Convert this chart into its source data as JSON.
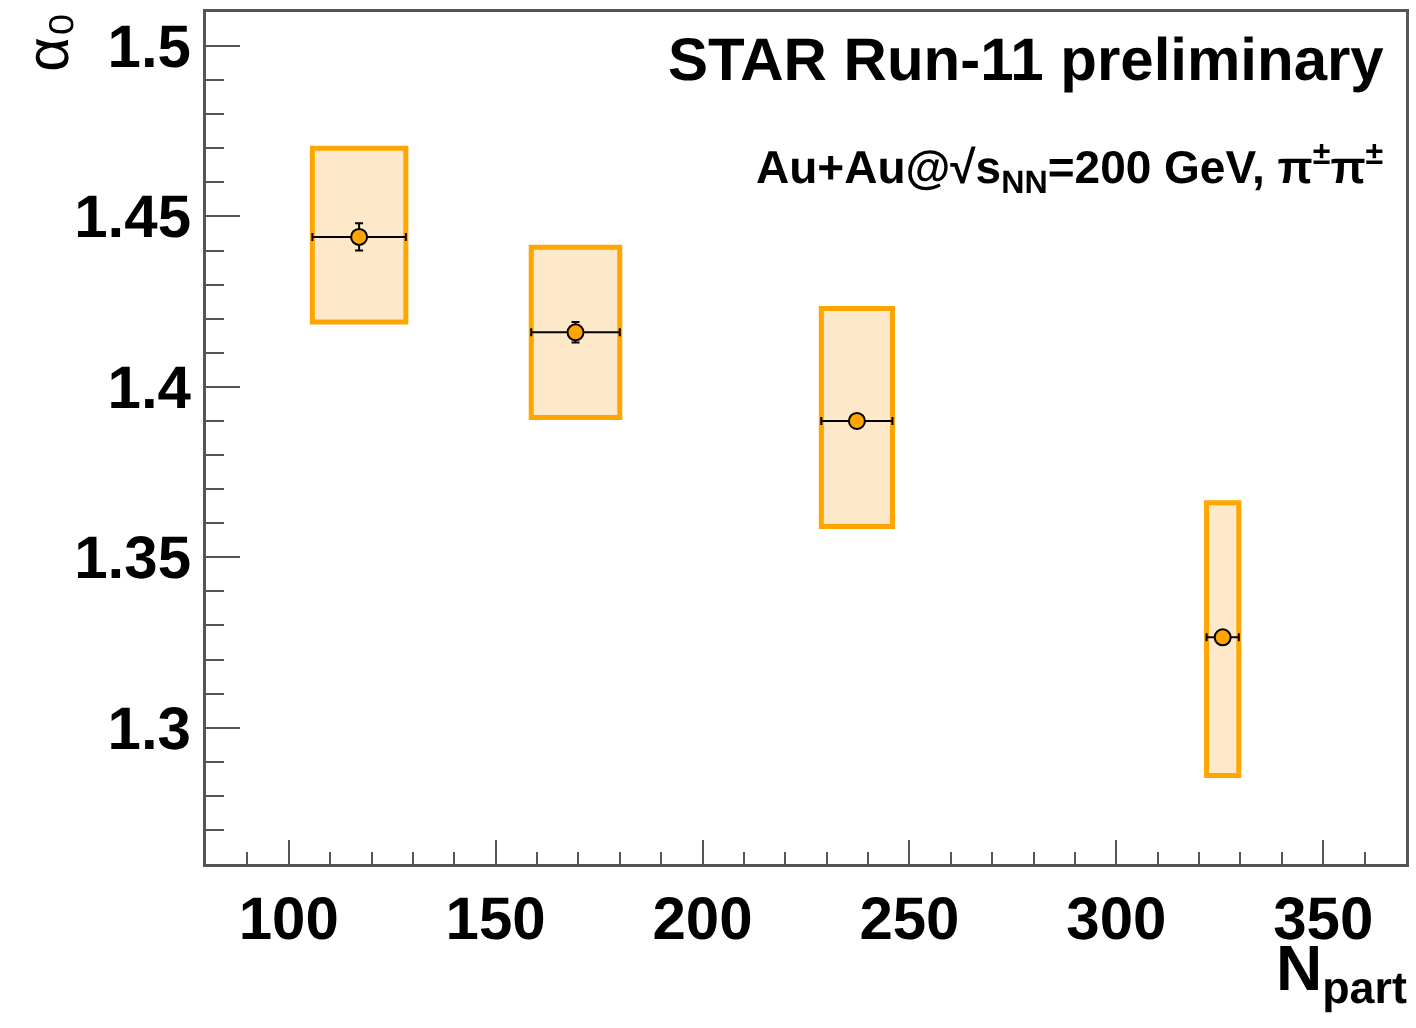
{
  "chart_data": {
    "type": "scatter",
    "xlabel": "N$_{part}$",
    "ylabel": "α₀",
    "annotations": [
      "STAR Run-11 preliminary",
      "Au+Au@√s$_{NN}$=200 GeV, π$^{±}$π$^{±}$"
    ],
    "xlim": [
      80,
      370
    ],
    "xticks": [
      100,
      150,
      200,
      250,
      300,
      350
    ],
    "ylim": [
      1.26,
      1.51
    ],
    "yticks": [
      1.3,
      1.35,
      1.4,
      1.45,
      1.5
    ],
    "grid": false,
    "marker": "circle",
    "series": [
      {
        "type": "bar",
        "color": "#ffa500",
        "x": [
          117,
          169.3,
          237.3,
          325.7
        ],
        "base": [
          1.419,
          1.391,
          1.359,
          1.286
        ],
        "values": [
          0.051,
          0.05,
          0.064,
          0.08
        ]
      },
      {
        "color": "#ffa500",
        "x": [
          117,
          169.3,
          237.3,
          325.7
        ],
        "values": [
          1.444,
          1.416,
          1.39,
          1.3265
        ],
        "errors": [
          0.004,
          0.003,
          0.002,
          null
        ],
        "xerrors": [
          11.3,
          10.7,
          8.6,
          3.9
        ]
      }
    ]
  }
}
